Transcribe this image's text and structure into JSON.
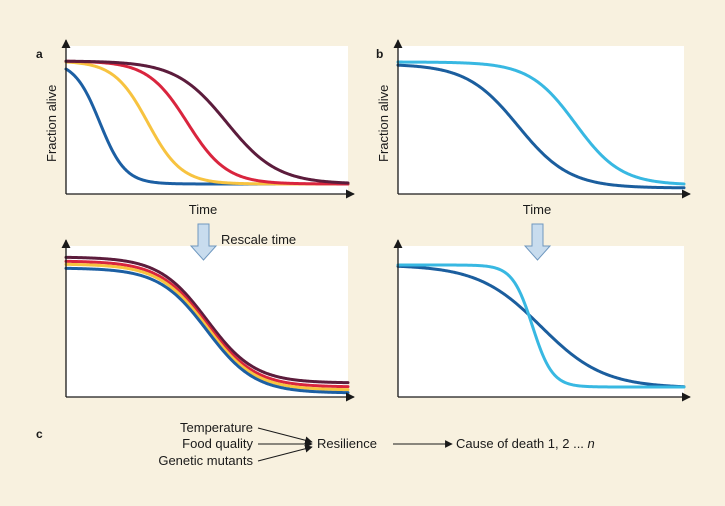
{
  "panels": {
    "a": {
      "letter": "a",
      "ylabel": "Fraction alive",
      "xlabel": "Time"
    },
    "b": {
      "letter": "b",
      "ylabel": "Fraction alive",
      "xlabel": "Time"
    },
    "c": {
      "letter": "c"
    }
  },
  "rescale_label": "Rescale time",
  "flow": {
    "inputs": [
      "Temperature",
      "Food quality",
      "Genetic mutants"
    ],
    "middle": "Resilience",
    "output_prefix": "Cause of death 1, 2 ... ",
    "output_n": "n"
  },
  "colors": {
    "background": "#f8f1df",
    "navy_blue": "#1c5fa3",
    "yellow": "#f7c340",
    "red": "#d9253e",
    "maroon": "#5c1c3c",
    "dark_blue": "#1b5e9e",
    "light_blue": "#38b8e2",
    "arrow_fill": "#c8dcee"
  },
  "chart_data": [
    {
      "panel": "a-top",
      "type": "line",
      "xlabel": "Time",
      "ylabel": "Fraction alive",
      "series": [
        {
          "name": "blue",
          "color": "navy_blue",
          "midpoint": 0.12,
          "steepness": 0.045
        },
        {
          "name": "yellow",
          "color": "yellow",
          "midpoint": 0.29,
          "steepness": 0.06
        },
        {
          "name": "red",
          "color": "red",
          "midpoint": 0.43,
          "steepness": 0.07
        },
        {
          "name": "maroon",
          "color": "maroon",
          "midpoint": 0.57,
          "steepness": 0.09
        }
      ]
    },
    {
      "panel": "b-top",
      "type": "line",
      "xlabel": "Time",
      "ylabel": "Fraction alive",
      "series": [
        {
          "name": "dark blue",
          "color": "dark_blue",
          "midpoint": 0.42,
          "steepness": 0.09
        },
        {
          "name": "light blue",
          "color": "light_blue",
          "midpoint": 0.62,
          "steepness": 0.08
        }
      ]
    },
    {
      "panel": "a-bottom",
      "type": "line",
      "note": "rescaled time, curves overlap",
      "series": [
        {
          "name": "maroon",
          "color": "maroon",
          "midpoint": 0.5,
          "steepness": 0.085
        },
        {
          "name": "red",
          "color": "red",
          "midpoint": 0.5,
          "steepness": 0.085
        },
        {
          "name": "yellow",
          "color": "yellow",
          "midpoint": 0.5,
          "steepness": 0.085
        },
        {
          "name": "blue",
          "color": "navy_blue",
          "midpoint": 0.5,
          "steepness": 0.085
        }
      ]
    },
    {
      "panel": "b-bottom",
      "type": "line",
      "note": "rescaled time, different curve shape",
      "series": [
        {
          "name": "dark blue",
          "color": "dark_blue",
          "midpoint": 0.5,
          "steepness": 0.11
        },
        {
          "name": "light blue",
          "color": "light_blue",
          "midpoint": 0.47,
          "steepness": 0.035
        }
      ]
    }
  ]
}
